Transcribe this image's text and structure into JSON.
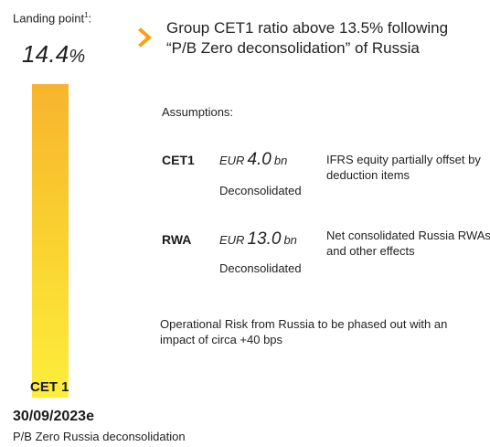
{
  "landing": {
    "label": "Landing point",
    "footnote": "1",
    "suffix": ":",
    "value": "14.4",
    "unit": "%"
  },
  "bar": {
    "label": "CET 1",
    "date": "30/09/2023e",
    "caption": "P/B Zero Russia deconsolidation"
  },
  "headline": "Group CET1 ratio above 13.5% following “P/B Zero deconsolidation” of Russia",
  "assumptions_title": "Assumptions:",
  "rows": [
    {
      "label": "CET1",
      "currency": "EUR",
      "amount": "4.0",
      "unit": "bn",
      "note": "Deconsolidated",
      "description": "IFRS equity partially offset by deduction items"
    },
    {
      "label": "RWA",
      "currency": "EUR",
      "amount": "13.0",
      "unit": "bn",
      "note": "Deconsolidated",
      "description": "Net consolidated Russia RWAs and other effects"
    }
  ],
  "operational_risk": "Operational Risk from Russia to be phased out with an impact of circa +40 bps",
  "colors": {
    "accent": "#ff9e0f",
    "bar_top": "#f7b42e",
    "bar_bottom": "#fdee3c"
  }
}
